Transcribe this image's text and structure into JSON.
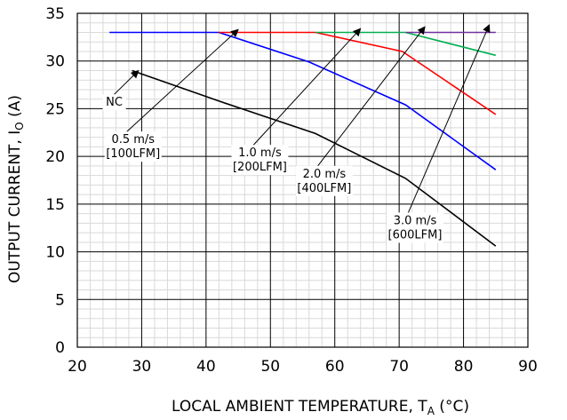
{
  "chart_data": {
    "type": "line",
    "title": "",
    "xlabel": "LOCAL AMBIENT TEMPERATURE, T",
    "xlabel_sub": "A",
    "xlabel_unit": " (°C)",
    "ylabel": "OUTPUT CURRENT, I",
    "ylabel_sub": "O",
    "ylabel_unit": " (A)",
    "xlim": [
      20,
      90
    ],
    "ylim": [
      0,
      35
    ],
    "xticks": [
      20,
      30,
      40,
      50,
      60,
      70,
      80,
      90
    ],
    "yticks": [
      0,
      5,
      10,
      15,
      20,
      25,
      30,
      35
    ],
    "grid": true,
    "series": [
      {
        "name": "NC",
        "color": "#000000",
        "points": [
          [
            28.5,
            29
          ],
          [
            42,
            25.8
          ],
          [
            57,
            22.4
          ],
          [
            71,
            17.7
          ],
          [
            85,
            10.6
          ]
        ]
      },
      {
        "name": "0.5 m/s [100LFM]",
        "color": "#0000ff",
        "points": [
          [
            25,
            33
          ],
          [
            42,
            33
          ],
          [
            56,
            29.9
          ],
          [
            71,
            25.4
          ],
          [
            85,
            18.6
          ]
        ]
      },
      {
        "name": "1.0 m/s [200LFM]",
        "color": "#ff0000",
        "points": [
          [
            42,
            33
          ],
          [
            57,
            33
          ],
          [
            70.5,
            31
          ],
          [
            85,
            24.4
          ]
        ]
      },
      {
        "name": "2.0 m/s [400LFM]",
        "color": "#00b050",
        "points": [
          [
            57,
            33
          ],
          [
            71,
            33
          ],
          [
            85,
            30.6
          ]
        ]
      },
      {
        "name": "3.0 m/s [600LFM]",
        "color": "#7030a0",
        "points": [
          [
            71,
            33
          ],
          [
            85,
            33
          ]
        ]
      }
    ],
    "annotations": [
      {
        "lines": [
          "NC"
        ],
        "text_x": 24.5,
        "text_y": 25.3,
        "tip_x": 29.5,
        "tip_y": 29.0
      },
      {
        "lines": [
          "0.5 m/s",
          "[100LFM]"
        ],
        "text_x": 24.8,
        "text_y": 21.4,
        "tip_x": 45.0,
        "tip_y": 33.3
      },
      {
        "lines": [
          "1.0 m/s",
          "[200LFM]"
        ],
        "text_x": 44.5,
        "text_y": 20.0,
        "tip_x": 64.0,
        "tip_y": 33.4
      },
      {
        "lines": [
          "2.0 m/s",
          "[400LFM]"
        ],
        "text_x": 54.5,
        "text_y": 17.8,
        "tip_x": 74.0,
        "tip_y": 33.6
      },
      {
        "lines": [
          "3.0 m/s",
          "[600LFM]"
        ],
        "text_x": 68.6,
        "text_y": 12.9,
        "tip_x": 84.0,
        "tip_y": 33.8
      }
    ]
  }
}
